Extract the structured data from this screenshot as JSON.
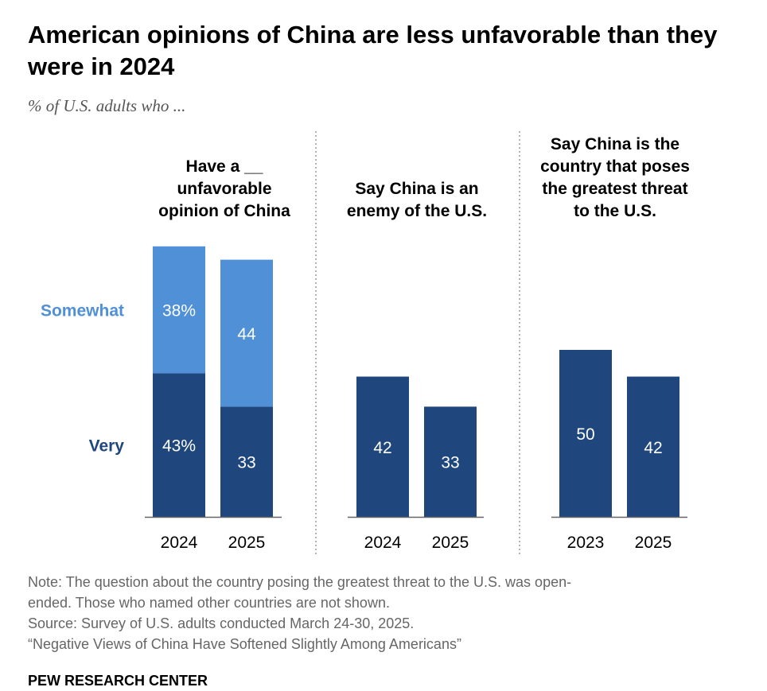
{
  "title": "American opinions of China are less unfavorable than they were in 2024",
  "subtitle": "% of U.S. adults who ...",
  "colors": {
    "very": "#1f477d",
    "somewhat": "#5090d6",
    "axis": "#666666",
    "divider": "#888888"
  },
  "chart_data": {
    "type": "bar",
    "legend": {
      "somewhat": "Somewhat",
      "very": "Very"
    },
    "panels": [
      {
        "heading": [
          "Have a __",
          "unfavorable",
          "opinion of China"
        ],
        "stacked": true,
        "categories": [
          "2024",
          "2025"
        ],
        "series": [
          {
            "name": "Very",
            "values": [
              43,
              33
            ],
            "labels": [
              "43%",
              "33"
            ]
          },
          {
            "name": "Somewhat",
            "values": [
              38,
              44
            ],
            "labels": [
              "38%",
              "44"
            ]
          }
        ]
      },
      {
        "heading": [
          "Say China is an",
          "enemy of the U.S."
        ],
        "stacked": false,
        "categories": [
          "2024",
          "2025"
        ],
        "series": [
          {
            "values": [
              42,
              33
            ],
            "labels": [
              "42",
              "33"
            ]
          }
        ]
      },
      {
        "heading": [
          "Say China is the",
          "country that poses",
          "the greatest threat",
          "to the U.S."
        ],
        "stacked": false,
        "categories": [
          "2023",
          "2025"
        ],
        "series": [
          {
            "values": [
              50,
              42
            ],
            "labels": [
              "50",
              "42"
            ]
          }
        ]
      }
    ]
  },
  "notes": [
    "Note: The question about the country posing the greatest threat to the U.S. was open-",
    "ended. Those who named other countries are not shown.",
    "Source: Survey of U.S. adults conducted March 24-30, 2025.",
    "“Negative Views of China Have Softened Slightly Among Americans”"
  ],
  "brand": "PEW RESEARCH CENTER"
}
